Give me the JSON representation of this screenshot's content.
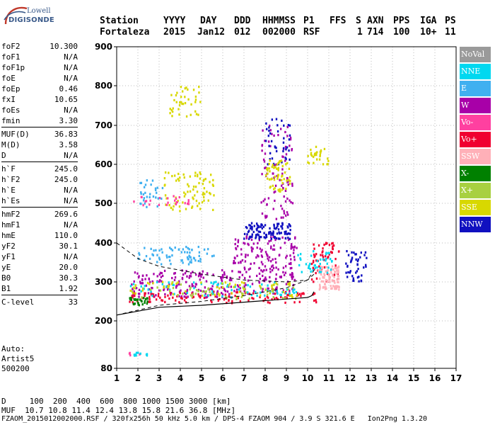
{
  "logo": {
    "line1": "Lowell",
    "line2": "DIGISONDE"
  },
  "header": {
    "row1": [
      "Station",
      "YYYY",
      "DAY",
      "DDD",
      "HHMMSS",
      "P1",
      "FFS",
      "S",
      "AXN",
      "PPS",
      "IGA",
      "PS"
    ],
    "row2": [
      "Fortaleza",
      "2015",
      "Jan12",
      "012",
      "002000",
      "RSF",
      "1",
      "714",
      "100",
      "10+",
      "11"
    ]
  },
  "params": [
    {
      "k": "foF2",
      "v": "10.300"
    },
    {
      "k": "foF1",
      "v": "N/A"
    },
    {
      "k": "foF1p",
      "v": "N/A"
    },
    {
      "k": "foE",
      "v": "N/A"
    },
    {
      "k": "foEp",
      "v": "0.46"
    },
    {
      "k": "fxI",
      "v": "10.65"
    },
    {
      "k": "foEs",
      "v": "N/A"
    },
    {
      "k": "fmin",
      "v": "3.30"
    },
    {
      "k": "MUF(D)",
      "v": "36.83"
    },
    {
      "k": "M(D)",
      "v": "3.58"
    },
    {
      "k": "D",
      "v": "N/A"
    },
    {
      "k": "h`F",
      "v": "245.0"
    },
    {
      "k": "h`F2",
      "v": "245.0"
    },
    {
      "k": "h`E",
      "v": "N/A"
    },
    {
      "k": "h`Es",
      "v": "N/A"
    },
    {
      "k": "hmF2",
      "v": "269.6"
    },
    {
      "k": "hmF1",
      "v": "N/A"
    },
    {
      "k": "hmE",
      "v": "110.0"
    },
    {
      "k": "yF2",
      "v": "30.1"
    },
    {
      "k": "yF1",
      "v": "N/A"
    },
    {
      "k": "yE",
      "v": "20.0"
    },
    {
      "k": "B0",
      "v": "30.3"
    },
    {
      "k": "B1",
      "v": "1.92"
    },
    {
      "k": "C-level",
      "v": "33"
    }
  ],
  "auto": {
    "line1": "Auto:",
    "line2": "Artist5",
    "line3": "500200"
  },
  "bottom": {
    "d_row": "D     100  200  400  600  800 1000 1500 3000 [km]",
    "muf_row": "MUF  10.7 10.8 11.4 12.4 13.8 15.8 21.6 36.8 [MHz]",
    "footer": "FZAOM_2015012002000.RSF / 320fx256h 50 kHz 5.0 km / DPS-4 FZAOM 904 / 3.9 S 321.6 E   Ion2Png 1.3.20"
  },
  "legend": [
    {
      "label": "NoVal",
      "color": "#9a9a9a"
    },
    {
      "label": "NNE",
      "color": "#00d8f0"
    },
    {
      "label": "E",
      "color": "#40b0f0"
    },
    {
      "label": "W",
      "color": "#a800a8"
    },
    {
      "label": "Vo-",
      "color": "#ff40a0"
    },
    {
      "label": "Vo+",
      "color": "#f00030"
    },
    {
      "label": "SSW",
      "color": "#ffb0b8"
    },
    {
      "label": "X-",
      "color": "#008000"
    },
    {
      "label": "X+",
      "color": "#a8d040"
    },
    {
      "label": "SSE",
      "color": "#d8d800"
    },
    {
      "label": "NNW",
      "color": "#1010c0"
    }
  ],
  "chart_data": {
    "type": "scatter",
    "x_ticks": [
      "1",
      "2",
      "3",
      "4",
      "5",
      "6",
      "7",
      "8",
      "9",
      "10",
      "11",
      "12",
      "13",
      "14",
      "15",
      "16",
      "17"
    ],
    "y_ticks": [
      "80",
      "200",
      "300",
      "400",
      "500",
      "600",
      "700",
      "800",
      "900"
    ],
    "xlim": [
      1,
      17
    ],
    "ylim_ticks": [
      80,
      200,
      300,
      400,
      500,
      600,
      700,
      800,
      900
    ],
    "grid": true,
    "clusters": [
      {
        "series": "E",
        "fmin": 2.0,
        "fmax": 5.6,
        "hmin": 345,
        "hmax": 390,
        "n": 70
      },
      {
        "series": "E",
        "fmin": 2.0,
        "fmax": 3.2,
        "hmin": 490,
        "hmax": 560,
        "n": 30
      },
      {
        "series": "SSE",
        "fmin": 3.2,
        "fmax": 5.6,
        "hmin": 480,
        "hmax": 580,
        "n": 80
      },
      {
        "series": "SSE",
        "fmin": 3.5,
        "fmax": 5.0,
        "hmin": 720,
        "hmax": 800,
        "n": 40
      },
      {
        "series": "Vo-",
        "fmin": 1.8,
        "fmax": 4.5,
        "hmin": 495,
        "hmax": 520,
        "n": 25
      },
      {
        "series": "W",
        "fmin": 1.7,
        "fmax": 6.5,
        "hmin": 260,
        "hmax": 330,
        "n": 170
      },
      {
        "series": "W",
        "fmin": 6.5,
        "fmax": 9.5,
        "hmin": 270,
        "hmax": 420,
        "n": 200
      },
      {
        "series": "W",
        "fmin": 7.8,
        "fmax": 9.3,
        "hmin": 460,
        "hmax": 700,
        "n": 90
      },
      {
        "series": "NNW",
        "fmin": 7.0,
        "fmax": 9.2,
        "hmin": 410,
        "hmax": 450,
        "n": 110
      },
      {
        "series": "NNW",
        "fmin": 8.0,
        "fmax": 9.2,
        "hmin": 600,
        "hmax": 720,
        "n": 40
      },
      {
        "series": "NNW",
        "fmin": 11.8,
        "fmax": 12.8,
        "hmin": 300,
        "hmax": 380,
        "n": 45
      },
      {
        "series": "Vo+",
        "fmin": 1.6,
        "fmax": 10.5,
        "hmin": 245,
        "hmax": 275,
        "n": 120
      },
      {
        "series": "Vo+",
        "fmin": 10.2,
        "fmax": 11.5,
        "hmin": 300,
        "hmax": 400,
        "n": 60
      },
      {
        "series": "SSW",
        "fmin": 10.5,
        "fmax": 11.5,
        "hmin": 280,
        "hmax": 340,
        "n": 90
      },
      {
        "series": "NNE",
        "fmin": 1.6,
        "fmax": 9.5,
        "hmin": 260,
        "hmax": 300,
        "n": 70
      },
      {
        "series": "NNE",
        "fmin": 9.5,
        "fmax": 11.2,
        "hmin": 320,
        "hmax": 380,
        "n": 40
      },
      {
        "series": "X+",
        "fmin": 1.6,
        "fmax": 9.5,
        "hmin": 255,
        "hmax": 295,
        "n": 60
      },
      {
        "series": "SSE",
        "fmin": 1.6,
        "fmax": 9.5,
        "hmin": 260,
        "hmax": 300,
        "n": 60
      },
      {
        "series": "SSE",
        "fmin": 10.0,
        "fmax": 11.0,
        "hmin": 600,
        "hmax": 650,
        "n": 30
      },
      {
        "series": "SSE",
        "fmin": 8.0,
        "fmax": 9.2,
        "hmin": 530,
        "hmax": 610,
        "n": 60
      },
      {
        "series": "X-",
        "fmin": 1.6,
        "fmax": 2.5,
        "hmin": 240,
        "hmax": 260,
        "n": 30
      },
      {
        "series": "Vo-",
        "fmin": 1.6,
        "fmax": 2.5,
        "hmin": 112,
        "hmax": 120,
        "n": 5
      },
      {
        "series": "NNE",
        "fmin": 1.8,
        "fmax": 2.5,
        "hmin": 112,
        "hmax": 120,
        "n": 10
      }
    ],
    "profile_true_height": [
      [
        1.0,
        215
      ],
      [
        3.0,
        235
      ],
      [
        5.0,
        240
      ],
      [
        7.0,
        248
      ],
      [
        9.0,
        256
      ],
      [
        10.0,
        260
      ],
      [
        10.2,
        265
      ],
      [
        10.3,
        275
      ]
    ],
    "virtual_height_dashed_lower": [
      [
        1.0,
        215
      ],
      [
        3.0,
        240
      ],
      [
        5.0,
        250
      ],
      [
        7.0,
        265
      ],
      [
        9.0,
        285
      ],
      [
        10.0,
        305
      ],
      [
        10.3,
        330
      ]
    ],
    "virtual_height_dashed_upper": [
      [
        1.0,
        400
      ],
      [
        2.0,
        360
      ],
      [
        3.0,
        340
      ],
      [
        5.0,
        320
      ],
      [
        7.0,
        305
      ],
      [
        9.0,
        300
      ],
      [
        10.0,
        305
      ],
      [
        10.3,
        320
      ]
    ]
  }
}
